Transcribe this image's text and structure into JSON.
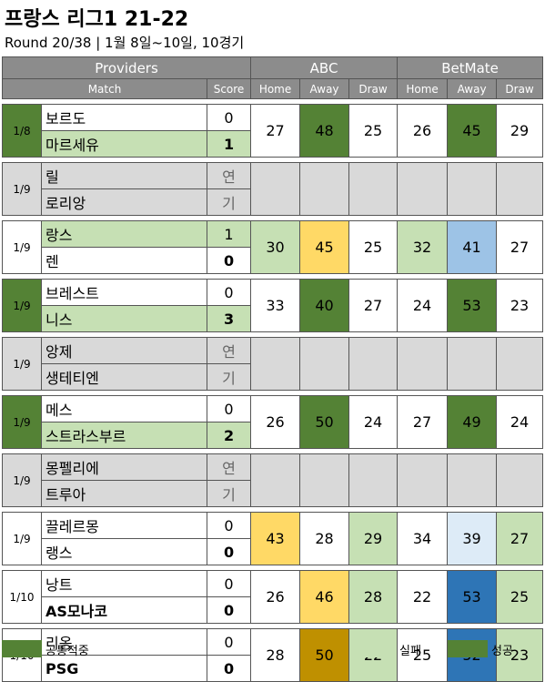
{
  "title": "프랑스 리그1 21-22",
  "subtitle": "Round 20/38  | 1월 8일~10일, 10경기",
  "colors": {
    "header_bg": "#8c8c8c",
    "consensus": "#548235",
    "fail": "#c6e0b4",
    "success": "#548235",
    "home_winner": "#c6e0b4",
    "postponed": "#d9d9d9",
    "yellow": "#ffd966",
    "blue_light": "#9dc3e6",
    "blue_lighter": "#ddebf7",
    "blue_dark": "#2e75b6",
    "gold": "#bf9000"
  },
  "header": {
    "providers": "Providers",
    "match": "Match",
    "score": "Score",
    "provider_names": [
      "ABC",
      "BetMate"
    ],
    "cols": [
      "Home",
      "Away",
      "Draw",
      "Home",
      "Away",
      "Draw"
    ]
  },
  "matches": [
    {
      "date": "1/8",
      "home": "보르도",
      "away": "마르세유",
      "home_score": "0",
      "away_score": "1",
      "odds": [
        "27",
        "48",
        "25",
        "26",
        "45",
        "29"
      ]
    },
    {
      "date": "1/9",
      "home": "릴",
      "away": "로리앙",
      "home_score": "연",
      "away_score": "기",
      "odds": [
        "",
        "",
        "",
        "",
        "",
        ""
      ]
    },
    {
      "date": "1/9",
      "home": "랑스",
      "away": "렌",
      "home_score": "1",
      "away_score": "0",
      "odds": [
        "30",
        "45",
        "25",
        "32",
        "41",
        "27"
      ]
    },
    {
      "date": "1/9",
      "home": "브레스트",
      "away": "니스",
      "home_score": "0",
      "away_score": "3",
      "odds": [
        "33",
        "40",
        "27",
        "24",
        "53",
        "23"
      ]
    },
    {
      "date": "1/9",
      "home": "앙제",
      "away": "생테티엔",
      "home_score": "연",
      "away_score": "기",
      "odds": [
        "",
        "",
        "",
        "",
        "",
        ""
      ]
    },
    {
      "date": "1/9",
      "home": "메스",
      "away": "스트라스부르",
      "home_score": "0",
      "away_score": "2",
      "odds": [
        "26",
        "50",
        "24",
        "27",
        "49",
        "24"
      ]
    },
    {
      "date": "1/9",
      "home": "몽펠리에",
      "away": "트루아",
      "home_score": "연",
      "away_score": "기",
      "odds": [
        "",
        "",
        "",
        "",
        "",
        ""
      ]
    },
    {
      "date": "1/9",
      "home": "끌레르몽",
      "away": "랭스",
      "home_score": "0",
      "away_score": "0",
      "odds": [
        "43",
        "28",
        "29",
        "34",
        "39",
        "27"
      ]
    },
    {
      "date": "1/10",
      "home": "낭트",
      "away": "AS모나코",
      "home_score": "0",
      "away_score": "0",
      "odds": [
        "26",
        "46",
        "28",
        "22",
        "53",
        "25"
      ]
    },
    {
      "date": "1/10",
      "home": "리옹",
      "away": "PSG",
      "home_score": "0",
      "away_score": "0",
      "odds": [
        "28",
        "50",
        "22",
        "25",
        "52",
        "23"
      ]
    }
  ],
  "legend": {
    "consensus": "공통적중",
    "fail": "실패",
    "success": "성공"
  }
}
